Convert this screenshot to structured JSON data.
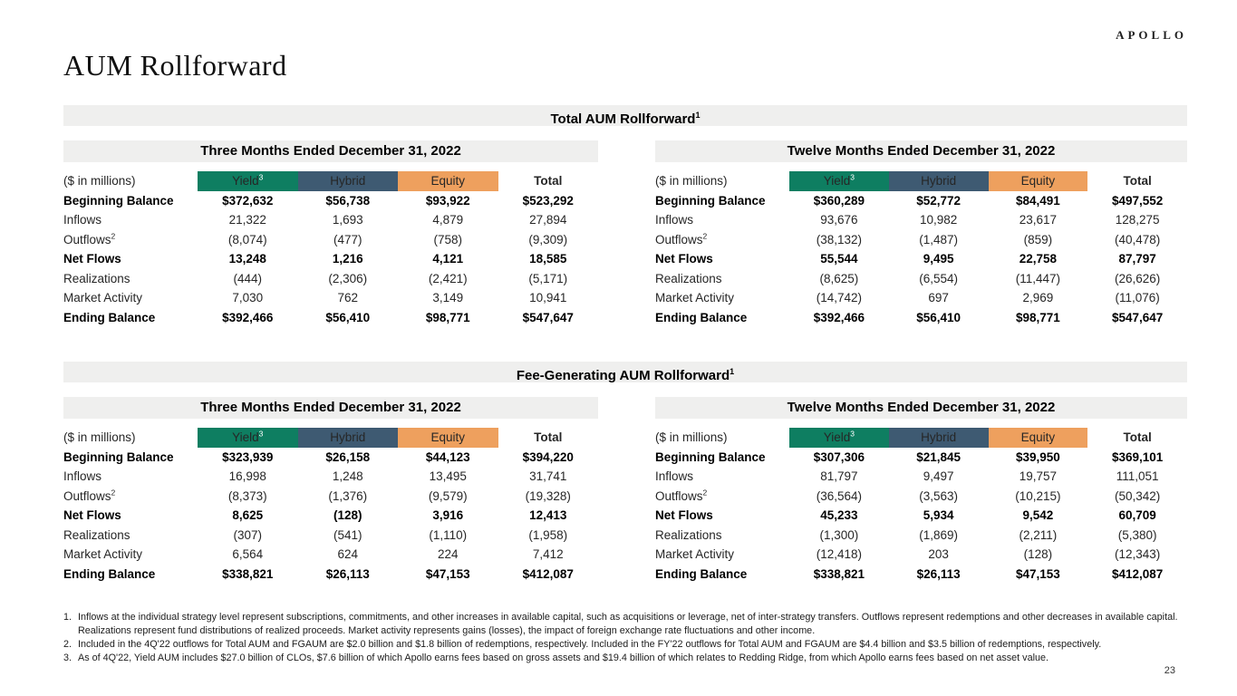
{
  "brand": {
    "logo_text": "APOLLO"
  },
  "page": {
    "title": "AUM Rollforward",
    "number": "23"
  },
  "columns": {
    "unit": "($ in millions)",
    "yield": "Yield",
    "yield_sup": "3",
    "hybrid": "Hybrid",
    "equity": "Equity",
    "total": "Total"
  },
  "colors": {
    "yield_chip": "#0E7E61",
    "hybrid_chip": "#3E5A72",
    "equity_chip": "#EEA05E",
    "band_bg": "#EFEFEE"
  },
  "sections": [
    {
      "title": "Total AUM Rollforward",
      "title_sup": "1",
      "tables": [
        {
          "period": "Three Months Ended December 31, 2022",
          "rows": [
            {
              "label": "Beginning Balance",
              "bold": true,
              "values": [
                "$372,632",
                "$56,738",
                "$93,922",
                "$523,292"
              ]
            },
            {
              "label": "Inflows",
              "values": [
                "21,322",
                "1,693",
                "4,879",
                "27,894"
              ]
            },
            {
              "label": "Outflows",
              "sup": "2",
              "values": [
                "(8,074)",
                "(477)",
                "(758)",
                "(9,309)"
              ]
            },
            {
              "label": "Net Flows",
              "bold": true,
              "values": [
                "13,248",
                "1,216",
                "4,121",
                "18,585"
              ]
            },
            {
              "label": "Realizations",
              "values": [
                "(444)",
                "(2,306)",
                "(2,421)",
                "(5,171)"
              ]
            },
            {
              "label": "Market Activity",
              "values": [
                "7,030",
                "762",
                "3,149",
                "10,941"
              ]
            },
            {
              "label": "Ending Balance",
              "bold": true,
              "values": [
                "$392,466",
                "$56,410",
                "$98,771",
                "$547,647"
              ]
            }
          ]
        },
        {
          "period": "Twelve Months Ended December 31, 2022",
          "rows": [
            {
              "label": "Beginning Balance",
              "bold": true,
              "values": [
                "$360,289",
                "$52,772",
                "$84,491",
                "$497,552"
              ]
            },
            {
              "label": "Inflows",
              "values": [
                "93,676",
                "10,982",
                "23,617",
                "128,275"
              ]
            },
            {
              "label": "Outflows",
              "sup": "2",
              "values": [
                "(38,132)",
                "(1,487)",
                "(859)",
                "(40,478)"
              ]
            },
            {
              "label": "Net Flows",
              "bold": true,
              "values": [
                "55,544",
                "9,495",
                "22,758",
                "87,797"
              ]
            },
            {
              "label": "Realizations",
              "values": [
                "(8,625)",
                "(6,554)",
                "(11,447)",
                "(26,626)"
              ]
            },
            {
              "label": "Market Activity",
              "values": [
                "(14,742)",
                "697",
                "2,969",
                "(11,076)"
              ]
            },
            {
              "label": "Ending Balance",
              "bold": true,
              "values": [
                "$392,466",
                "$56,410",
                "$98,771",
                "$547,647"
              ]
            }
          ]
        }
      ]
    },
    {
      "title": "Fee-Generating AUM Rollforward",
      "title_sup": "1",
      "tables": [
        {
          "period": "Three Months Ended December 31, 2022",
          "rows": [
            {
              "label": "Beginning Balance",
              "bold": true,
              "values": [
                "$323,939",
                "$26,158",
                "$44,123",
                "$394,220"
              ]
            },
            {
              "label": "Inflows",
              "values": [
                "16,998",
                "1,248",
                "13,495",
                "31,741"
              ]
            },
            {
              "label": "Outflows",
              "sup": "2",
              "values": [
                "(8,373)",
                "(1,376)",
                "(9,579)",
                "(19,328)"
              ]
            },
            {
              "label": "Net Flows",
              "bold": true,
              "values": [
                "8,625",
                "(128)",
                "3,916",
                "12,413"
              ]
            },
            {
              "label": "Realizations",
              "values": [
                "(307)",
                "(541)",
                "(1,110)",
                "(1,958)"
              ]
            },
            {
              "label": "Market Activity",
              "values": [
                "6,564",
                "624",
                "224",
                "7,412"
              ]
            },
            {
              "label": "Ending Balance",
              "bold": true,
              "values": [
                "$338,821",
                "$26,113",
                "$47,153",
                "$412,087"
              ]
            }
          ]
        },
        {
          "period": "Twelve Months Ended December 31, 2022",
          "rows": [
            {
              "label": "Beginning Balance",
              "bold": true,
              "values": [
                "$307,306",
                "$21,845",
                "$39,950",
                "$369,101"
              ]
            },
            {
              "label": "Inflows",
              "values": [
                "81,797",
                "9,497",
                "19,757",
                "111,051"
              ]
            },
            {
              "label": "Outflows",
              "sup": "2",
              "values": [
                "(36,564)",
                "(3,563)",
                "(10,215)",
                "(50,342)"
              ]
            },
            {
              "label": "Net Flows",
              "bold": true,
              "values": [
                "45,233",
                "5,934",
                "9,542",
                "60,709"
              ]
            },
            {
              "label": "Realizations",
              "values": [
                "(1,300)",
                "(1,869)",
                "(2,211)",
                "(5,380)"
              ]
            },
            {
              "label": "Market Activity",
              "values": [
                "(12,418)",
                "203",
                "(128)",
                "(12,343)"
              ]
            },
            {
              "label": "Ending Balance",
              "bold": true,
              "values": [
                "$338,821",
                "$26,113",
                "$47,153",
                "$412,087"
              ]
            }
          ]
        }
      ]
    }
  ],
  "footnotes": [
    {
      "num": "1.",
      "text": "Inflows at the individual strategy level represent subscriptions, commitments, and other increases in available capital, such as acquisitions or leverage, net of inter-strategy transfers. Outflows represent redemptions and other decreases in available capital. Realizations represent fund distributions of realized proceeds. Market activity represents gains (losses), the impact of foreign exchange rate fluctuations and other income."
    },
    {
      "num": "2.",
      "text": "Included in the 4Q'22 outflows for Total AUM and FGAUM are $2.0 billion and $1.8 billion of redemptions, respectively. Included in the FY'22 outflows for Total AUM and FGAUM are $4.4 billion and $3.5 billion of redemptions, respectively."
    },
    {
      "num": "3.",
      "text": "As of 4Q'22, Yield AUM includes $27.0 billion of CLOs, $7.6 billion of which Apollo earns fees based on gross assets and $19.4 billion of which relates to Redding Ridge, from which Apollo earns fees based on net asset value."
    }
  ]
}
